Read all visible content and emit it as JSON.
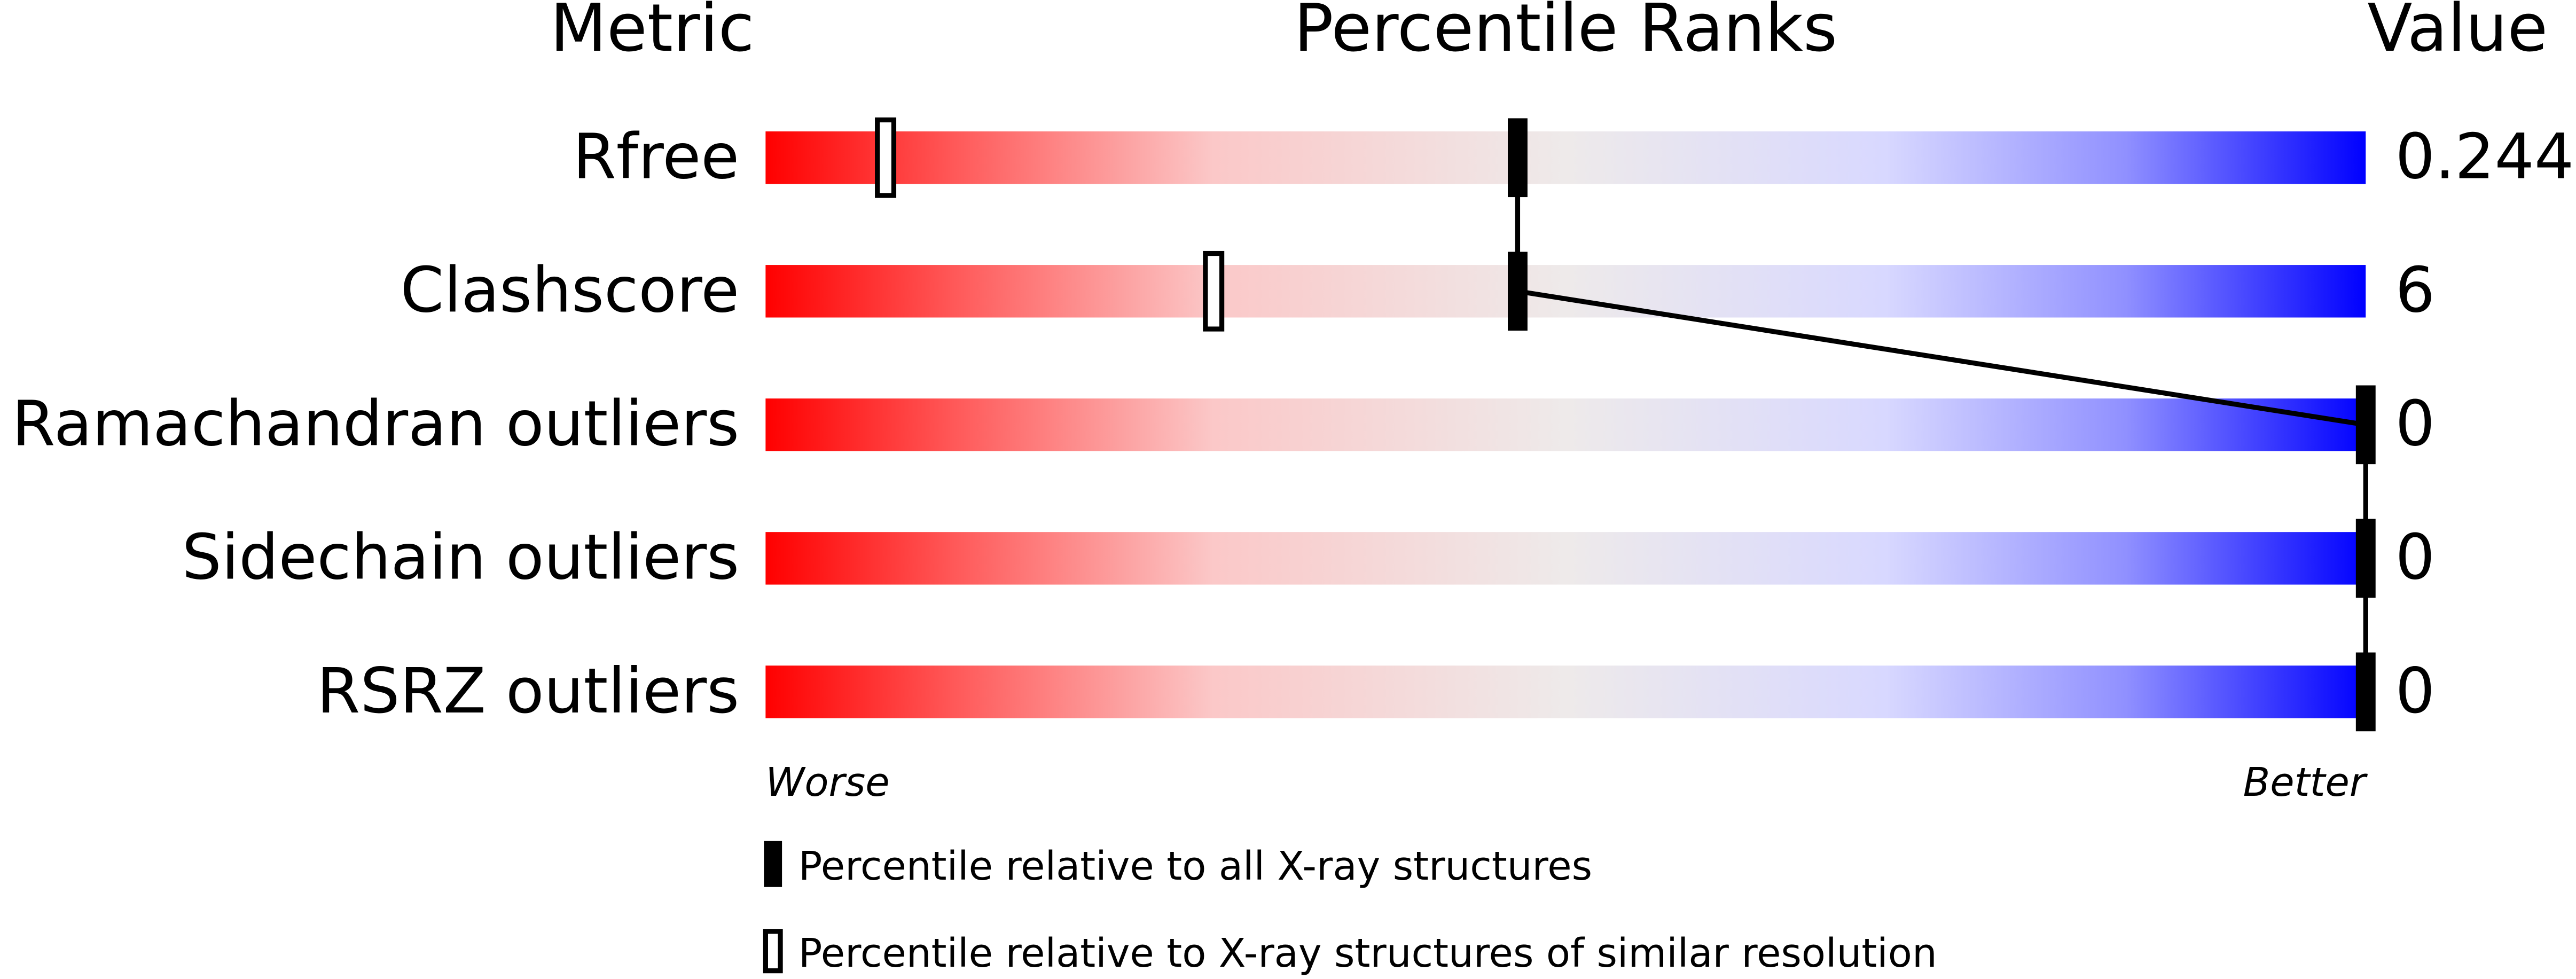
{
  "chart_data": {
    "type": "percentile_slider",
    "headers": [
      "Metric",
      "Percentile Ranks",
      "Value"
    ],
    "categories": [
      "Rfree",
      "Clashscore",
      "Ramachandran outliers",
      "Sidechain outliers",
      "RSRZ outliers"
    ],
    "metric_values": [
      0.244,
      6,
      0,
      0,
      0
    ],
    "xlim": [
      0,
      100
    ],
    "axis_labels": [
      "Worse",
      "Better"
    ],
    "series": [
      {
        "name": "Percentile relative to all X-ray structures",
        "style": "filled",
        "color": "#000000",
        "values": [
          47,
          47,
          100,
          100,
          100
        ]
      },
      {
        "name": "Percentile relative to X-ray structures of similar resolution",
        "style": "hollow",
        "color": "#000000",
        "values": [
          7.5,
          28,
          null,
          null,
          null
        ]
      }
    ]
  }
}
